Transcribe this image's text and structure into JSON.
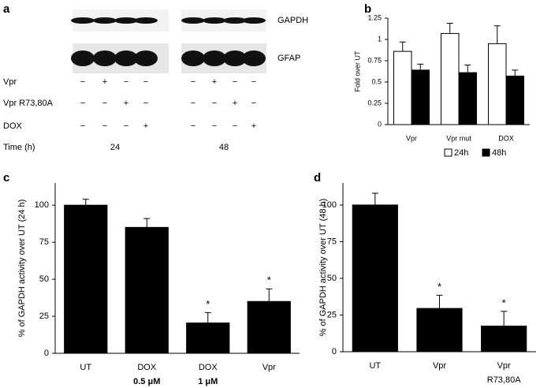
{
  "blot": {
    "panel_label": "a",
    "bands": [
      "GAPDH",
      "GFAP"
    ],
    "rows": [
      {
        "label": "Vpr",
        "signs": [
          "−",
          "+",
          "−",
          "−",
          "−",
          "+",
          "−",
          "−"
        ]
      },
      {
        "label": "Vpr R73,80A",
        "signs": [
          "−",
          "−",
          "+",
          "−",
          "−",
          "−",
          "+",
          "−"
        ]
      },
      {
        "label": "DOX",
        "signs": [
          "−",
          "−",
          "−",
          "+",
          "−",
          "−",
          "−",
          "+"
        ]
      }
    ],
    "time_label": "Time (h)",
    "times": [
      "24",
      "48"
    ]
  },
  "chart_data": [
    {
      "type": "bar",
      "panel_label": "b",
      "y_label": "Fold over UT",
      "categories": [
        "Vpr",
        "Vpr mut",
        "DOX"
      ],
      "series": [
        {
          "name": "24h",
          "color": "#ffffff",
          "values": [
            0.86,
            1.07,
            0.95
          ],
          "errors": [
            0.11,
            0.12,
            0.21
          ]
        },
        {
          "name": "48h",
          "color": "#000000",
          "values": [
            0.64,
            0.61,
            0.57
          ],
          "errors": [
            0.07,
            0.09,
            0.07
          ]
        }
      ],
      "ylim": [
        0,
        1.25
      ],
      "yticks": [
        0,
        0.25,
        0.5,
        0.75,
        1,
        1.25
      ],
      "legend": "bottom"
    },
    {
      "type": "bar",
      "panel_label": "c",
      "y_label": "% of GAPDH activity over UT (24 h)",
      "categories": [
        "UT",
        "DOX",
        "DOX",
        "Vpr"
      ],
      "category_sublabels": [
        null,
        "0.5 μM",
        "1 μM",
        null
      ],
      "values": [
        100,
        85,
        20.5,
        35
      ],
      "errors": [
        4,
        6,
        7,
        8.5
      ],
      "color": "#000000",
      "significance": [
        null,
        null,
        "*",
        "*"
      ],
      "ylim": [
        0,
        115
      ],
      "yticks": [
        0,
        25,
        50,
        75,
        100
      ]
    },
    {
      "type": "bar",
      "panel_label": "d",
      "y_label": "% of GAPDH activity over UT (48 h)",
      "categories": [
        "UT",
        "Vpr",
        "Vpr"
      ],
      "category_sublabels": [
        null,
        null,
        "R73,80A"
      ],
      "values": [
        100,
        29.5,
        17.5
      ],
      "errors": [
        8,
        9,
        10
      ],
      "color": "#000000",
      "significance": [
        null,
        "*",
        "*"
      ],
      "ylim": [
        0,
        115
      ],
      "yticks": [
        0,
        25,
        50,
        75,
        100
      ]
    }
  ]
}
